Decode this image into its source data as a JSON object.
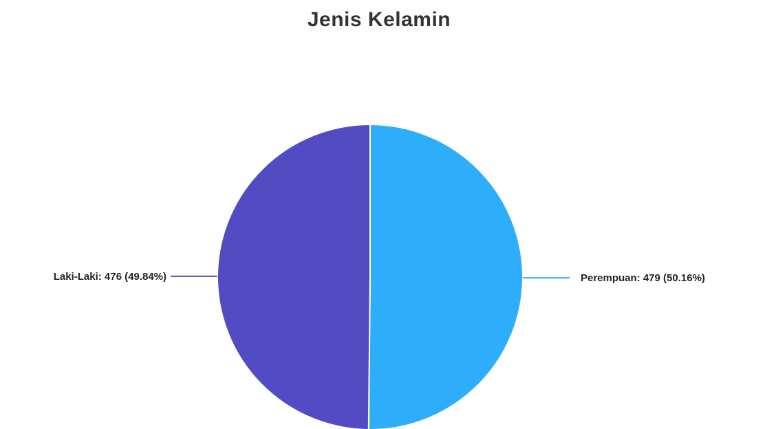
{
  "chart_data": {
    "type": "pie",
    "title": "Jenis Kelamin",
    "slices": [
      {
        "label": "Perempuan",
        "value": 479,
        "percent": "50.16%",
        "display": "Perempuan: 479 (50.16%)",
        "color": "#2eaefa"
      },
      {
        "label": "Laki-Laki",
        "value": 476,
        "percent": "49.84%",
        "display": "Laki-Laki: 476 (49.84%)",
        "color": "#534bc4"
      }
    ]
  }
}
